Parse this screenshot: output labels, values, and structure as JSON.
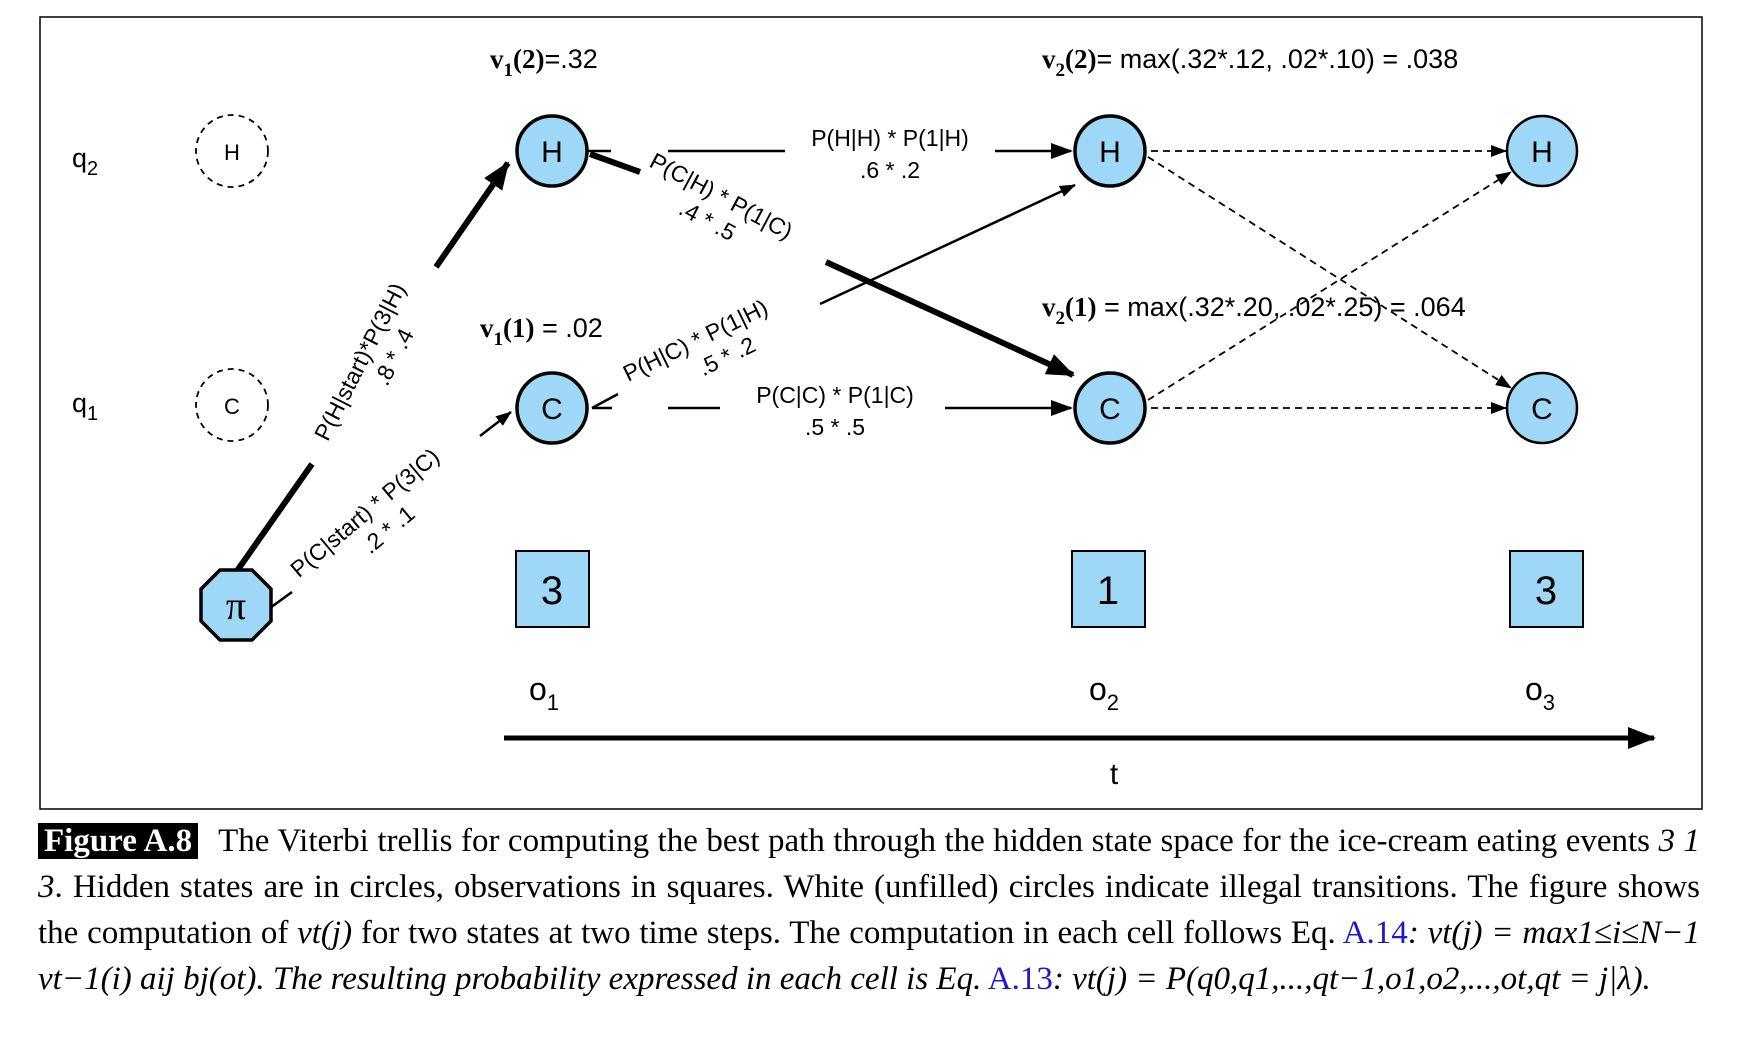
{
  "row_labels": {
    "q2": "q",
    "q2_sub": "2",
    "q1": "q",
    "q1_sub": "1"
  },
  "start_node": {
    "label": "π"
  },
  "illegal_states": {
    "h": "H",
    "c": "C"
  },
  "states": {
    "h1": "H",
    "c1": "C",
    "h2": "H",
    "c2": "C",
    "h3": "H",
    "c3": "C"
  },
  "observations": [
    "3",
    "1",
    "3"
  ],
  "obs_labels": [
    {
      "o": "o",
      "sub": "1"
    },
    {
      "o": "o",
      "sub": "2"
    },
    {
      "o": "o",
      "sub": "3"
    }
  ],
  "time_axis": {
    "label": "t"
  },
  "viterbi": {
    "v1_2": {
      "v": "v",
      "sub": "1",
      "rest": "(2)",
      "val": "=.32"
    },
    "v1_1": {
      "v": "v",
      "sub": "1",
      "rest": "(1)",
      "val": " = .02"
    },
    "v2_2": {
      "v": "v",
      "sub": "2",
      "rest": "(2)",
      "val": "= max(.32*.12, .02*.10) = .038"
    },
    "v2_1": {
      "v": "v",
      "sub": "2",
      "rest": "(1)",
      "val": " = max(.32*.20, .02*.25) = .064"
    }
  },
  "edges": {
    "start_h": {
      "expr": "P(H|start)*P(3|H)",
      "val": ".8 * .4"
    },
    "start_c": {
      "expr": "P(C|start) * P(3|C)",
      "val": ".2 * .1"
    },
    "h_h": {
      "expr": "P(H|H) * P(1|H)",
      "val": ".6 * .2"
    },
    "h_c": {
      "expr": "P(C|H) * P(1|C)",
      "val": ".4 * .5"
    },
    "c_h": {
      "expr": "P(H|C) * P(1|H)",
      "val": ".5 * .2"
    },
    "c_c": {
      "expr": "P(C|C) * P(1|C)",
      "val": ".5 * .5"
    }
  },
  "caption": {
    "label": "Figure A.8",
    "text_1": "The Viterbi trellis for computing the best path through the hidden state space for the ice-cream eating events",
    "seq": "3 1 3",
    "text_2": ". Hidden states are in circles, observations in squares. White (unfilled) circles indicate illegal transitions. The figure shows the computation of",
    "vtj": "vt(j)",
    "text_3": "for two states at two time steps. The computation in each cell follows Eq.",
    "ref1": "A.14",
    "formula1": ": vt(j) = max1≤i≤N−1 vt−1(i) aij bj(ot). The resulting probability expressed in each cell is Eq.",
    "ref2": "A.13",
    "formula2": ": vt(j) = P(q0,q1,...,qt−1,o1,o2,...,ot,qt = j|λ)."
  },
  "colors": {
    "node_fill": "#9fd8f6",
    "stroke": "#000000"
  }
}
